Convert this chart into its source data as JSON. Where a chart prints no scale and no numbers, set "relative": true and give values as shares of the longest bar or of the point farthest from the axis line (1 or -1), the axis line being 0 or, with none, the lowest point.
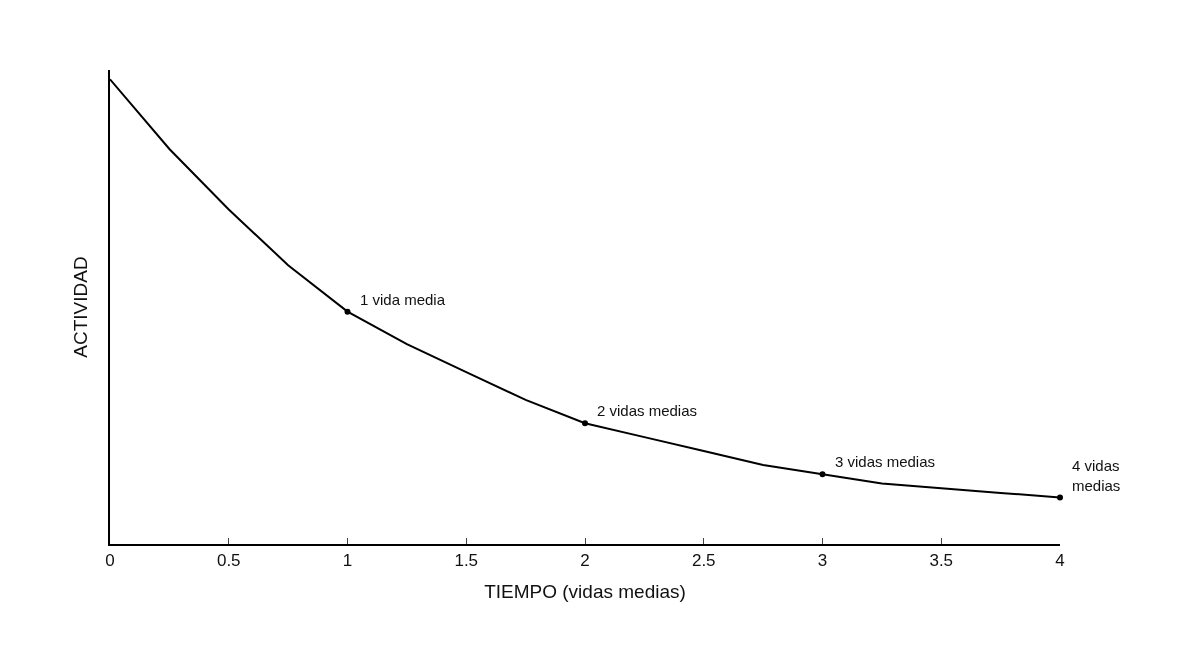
{
  "chart_data": {
    "type": "line",
    "relative": true,
    "xlabel": "TIEMPO (vidas medias)",
    "ylabel": "ACTIVIDAD",
    "xlim": [
      0,
      4
    ],
    "xticks": [
      0,
      0.5,
      1,
      1.5,
      2,
      2.5,
      3,
      3.5,
      4
    ],
    "series": [
      {
        "color": "#000000",
        "marker": "none",
        "x": [
          0,
          0.25,
          0.5,
          0.75,
          1,
          1.25,
          1.5,
          1.75,
          2,
          2.25,
          2.5,
          2.75,
          3,
          3.25,
          3.5,
          3.75,
          4
        ],
        "values": [
          1,
          0.85,
          0.72,
          0.6,
          0.5,
          0.43,
          0.37,
          0.31,
          0.26,
          0.23,
          0.2,
          0.17,
          0.15,
          0.13,
          0.12,
          0.11,
          0.1
        ]
      },
      {
        "type": "scatter",
        "color": "#000000",
        "marker": "circle",
        "x": [
          1,
          2,
          3,
          4
        ],
        "values": [
          0.5,
          0.26,
          0.15,
          0.1
        ]
      }
    ],
    "annotations": [
      {
        "text": "1 vida media",
        "x": 1,
        "y": 0.5
      },
      {
        "text": "2 vidas medias",
        "x": 2,
        "y": 0.26
      },
      {
        "text": "3 vidas medias",
        "x": 3,
        "y": 0.15
      },
      {
        "text": "4 vidas\nmedias",
        "x": 4,
        "y": 0.1
      }
    ]
  }
}
